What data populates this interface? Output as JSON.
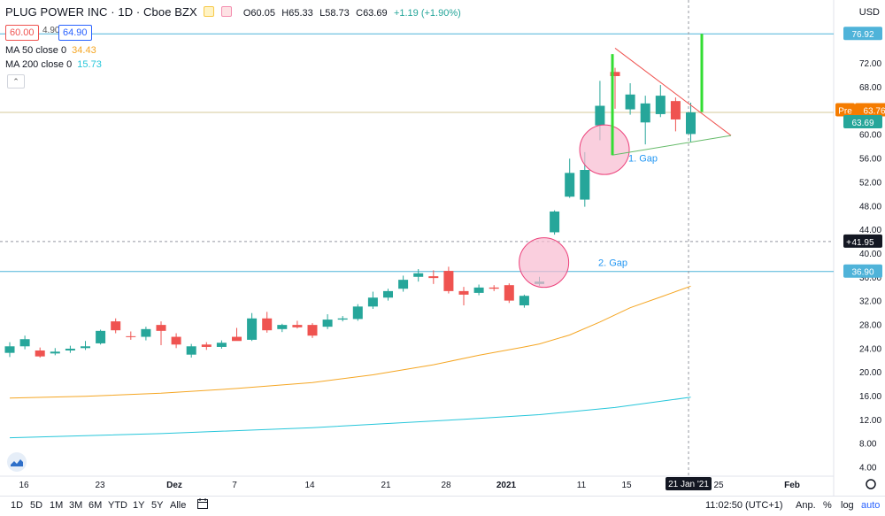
{
  "header": {
    "title": "PLUG POWER INC · 1D · Cboe BZX",
    "ohlc_open": "O60.05",
    "ohlc_high": "H65.33",
    "ohlc_low": "L58.73",
    "ohlc_close": "C63.69",
    "change": "+1.19 (+1.90%)",
    "bid": "60.00",
    "spread": "4.90",
    "ask": "64.90",
    "currency": "USD"
  },
  "indicators": [
    {
      "label": "MA 50 close 0",
      "value": "34.43",
      "color": "#f5a623"
    },
    {
      "label": "MA 200 close 0",
      "value": "15.73",
      "color": "#26c6da"
    }
  ],
  "price_axis": {
    "ticks": [
      "72.00",
      "68.00",
      "64.00",
      "60.00",
      "56.00",
      "52.00",
      "48.00",
      "44.00",
      "40.00",
      "36.00",
      "32.00",
      "28.00",
      "24.00",
      "20.00",
      "16.00",
      "12.00",
      "8.00",
      "4.00"
    ],
    "badges": {
      "top": "76.92",
      "pre_label": "Pre",
      "pre": "63.76",
      "last": "63.69",
      "crosshair": "41.95",
      "support": "36.90"
    }
  },
  "time_axis": {
    "labels": [
      "16",
      "23",
      "Dez",
      "7",
      "14",
      "21",
      "28",
      "2021",
      "11",
      "15",
      "25",
      "Feb"
    ],
    "crosshair": "21 Jan '21"
  },
  "annotations": {
    "gap1": "1. Gap",
    "gap2": "2. Gap"
  },
  "toolbar": {
    "timeframes": [
      "1D",
      "5D",
      "1M",
      "3M",
      "6M",
      "YTD",
      "1Y",
      "5Y",
      "Alle"
    ],
    "clock": "11:02:50 (UTC+1)",
    "adj": "Anp.",
    "pct": "%",
    "log": "log",
    "auto": "auto"
  },
  "colors": {
    "up": "#26a69a",
    "down": "#ef5350",
    "ma50": "#f5a623",
    "ma200": "#26c6da",
    "hline": "#4fb3d9",
    "pre": "#f57c00",
    "triangle_upper": "#ef5350",
    "triangle_lower": "#66bb6a",
    "highlight": "#33dd33",
    "circle_fill": "#f8bbd0",
    "circle_stroke": "#ec407a"
  },
  "chart_data": {
    "type": "candlestick",
    "y_range": [
      2,
      81
    ],
    "candles": [
      {
        "o": 23.2,
        "h": 25.0,
        "l": 22.5,
        "c": 24.3
      },
      {
        "o": 24.3,
        "h": 26.1,
        "l": 23.8,
        "c": 25.5
      },
      {
        "o": 23.6,
        "h": 24.1,
        "l": 22.4,
        "c": 22.6
      },
      {
        "o": 23.1,
        "h": 24.0,
        "l": 22.8,
        "c": 23.4
      },
      {
        "o": 23.6,
        "h": 24.4,
        "l": 23.2,
        "c": 23.9
      },
      {
        "o": 24.0,
        "h": 25.2,
        "l": 23.7,
        "c": 24.3
      },
      {
        "o": 24.8,
        "h": 27.1,
        "l": 24.6,
        "c": 26.9
      },
      {
        "o": 28.5,
        "h": 29.0,
        "l": 26.5,
        "c": 27.0
      },
      {
        "o": 26.0,
        "h": 26.8,
        "l": 25.4,
        "c": 25.9
      },
      {
        "o": 25.9,
        "h": 27.6,
        "l": 25.3,
        "c": 27.2
      },
      {
        "o": 27.9,
        "h": 28.5,
        "l": 24.5,
        "c": 26.9
      },
      {
        "o": 25.9,
        "h": 26.5,
        "l": 24.0,
        "c": 24.6
      },
      {
        "o": 22.9,
        "h": 24.7,
        "l": 22.4,
        "c": 24.3
      },
      {
        "o": 24.6,
        "h": 25.0,
        "l": 23.7,
        "c": 24.2
      },
      {
        "o": 24.2,
        "h": 25.3,
        "l": 23.9,
        "c": 24.9
      },
      {
        "o": 25.9,
        "h": 27.4,
        "l": 25.4,
        "c": 25.2
      },
      {
        "o": 25.4,
        "h": 29.9,
        "l": 25.2,
        "c": 29.0
      },
      {
        "o": 29.0,
        "h": 30.1,
        "l": 26.6,
        "c": 27.0
      },
      {
        "o": 27.2,
        "h": 28.1,
        "l": 26.7,
        "c": 27.9
      },
      {
        "o": 27.9,
        "h": 28.6,
        "l": 27.3,
        "c": 27.5
      },
      {
        "o": 27.9,
        "h": 28.2,
        "l": 25.7,
        "c": 26.1
      },
      {
        "o": 27.6,
        "h": 29.7,
        "l": 27.2,
        "c": 28.8
      },
      {
        "o": 28.8,
        "h": 29.4,
        "l": 28.5,
        "c": 29.0
      },
      {
        "o": 28.9,
        "h": 31.4,
        "l": 28.6,
        "c": 31.0
      },
      {
        "o": 31.0,
        "h": 33.5,
        "l": 30.6,
        "c": 32.5
      },
      {
        "o": 32.5,
        "h": 34.0,
        "l": 32.0,
        "c": 33.6
      },
      {
        "o": 34.0,
        "h": 36.2,
        "l": 33.5,
        "c": 35.5
      },
      {
        "o": 36.0,
        "h": 37.3,
        "l": 35.2,
        "c": 36.6
      },
      {
        "o": 36.1,
        "h": 37.1,
        "l": 34.8,
        "c": 35.8
      },
      {
        "o": 37.0,
        "h": 37.7,
        "l": 33.2,
        "c": 33.6
      },
      {
        "o": 33.6,
        "h": 34.3,
        "l": 31.2,
        "c": 33.0
      },
      {
        "o": 33.3,
        "h": 34.7,
        "l": 32.9,
        "c": 34.2
      },
      {
        "o": 34.2,
        "h": 34.6,
        "l": 33.6,
        "c": 34.0
      },
      {
        "o": 34.6,
        "h": 34.9,
        "l": 31.6,
        "c": 32.0
      },
      {
        "o": 31.2,
        "h": 33.0,
        "l": 30.8,
        "c": 32.8
      },
      {
        "o": 34.8,
        "h": 36.0,
        "l": 34.5,
        "c": 35.2
      },
      {
        "o": 43.5,
        "h": 47.2,
        "l": 43.1,
        "c": 47.0
      },
      {
        "o": 49.5,
        "h": 55.9,
        "l": 49.3,
        "c": 53.5
      },
      {
        "o": 49.0,
        "h": 57.0,
        "l": 47.8,
        "c": 54.0
      },
      {
        "o": 61.5,
        "h": 69.0,
        "l": 59.0,
        "c": 64.8
      },
      {
        "o": 70.5,
        "h": 71.2,
        "l": 64.3,
        "c": 69.8
      },
      {
        "o": 64.2,
        "h": 68.6,
        "l": 63.3,
        "c": 66.7
      },
      {
        "o": 62.0,
        "h": 66.5,
        "l": 58.3,
        "c": 65.2
      },
      {
        "o": 63.4,
        "h": 68.3,
        "l": 62.9,
        "c": 66.5
      },
      {
        "o": 65.6,
        "h": 66.2,
        "l": 60.5,
        "c": 62.5
      },
      {
        "o": 60.05,
        "h": 65.33,
        "l": 58.73,
        "c": 63.69
      }
    ],
    "ma50": [
      [
        0,
        15.6
      ],
      [
        5,
        15.9
      ],
      [
        10,
        16.4
      ],
      [
        15,
        17.2
      ],
      [
        20,
        18.2
      ],
      [
        24,
        19.5
      ],
      [
        28,
        21.2
      ],
      [
        31,
        22.8
      ],
      [
        34,
        24.2
      ],
      [
        35,
        24.7
      ],
      [
        37,
        26.2
      ],
      [
        39,
        28.4
      ],
      [
        41,
        30.8
      ],
      [
        43,
        32.6
      ],
      [
        45,
        34.43
      ]
    ],
    "ma200": [
      [
        0,
        8.9
      ],
      [
        10,
        9.6
      ],
      [
        20,
        10.6
      ],
      [
        30,
        12.0
      ],
      [
        35,
        12.8
      ],
      [
        40,
        14.0
      ],
      [
        45,
        15.73
      ]
    ],
    "hlines": [
      76.92,
      63.69,
      41.95,
      36.9
    ]
  }
}
